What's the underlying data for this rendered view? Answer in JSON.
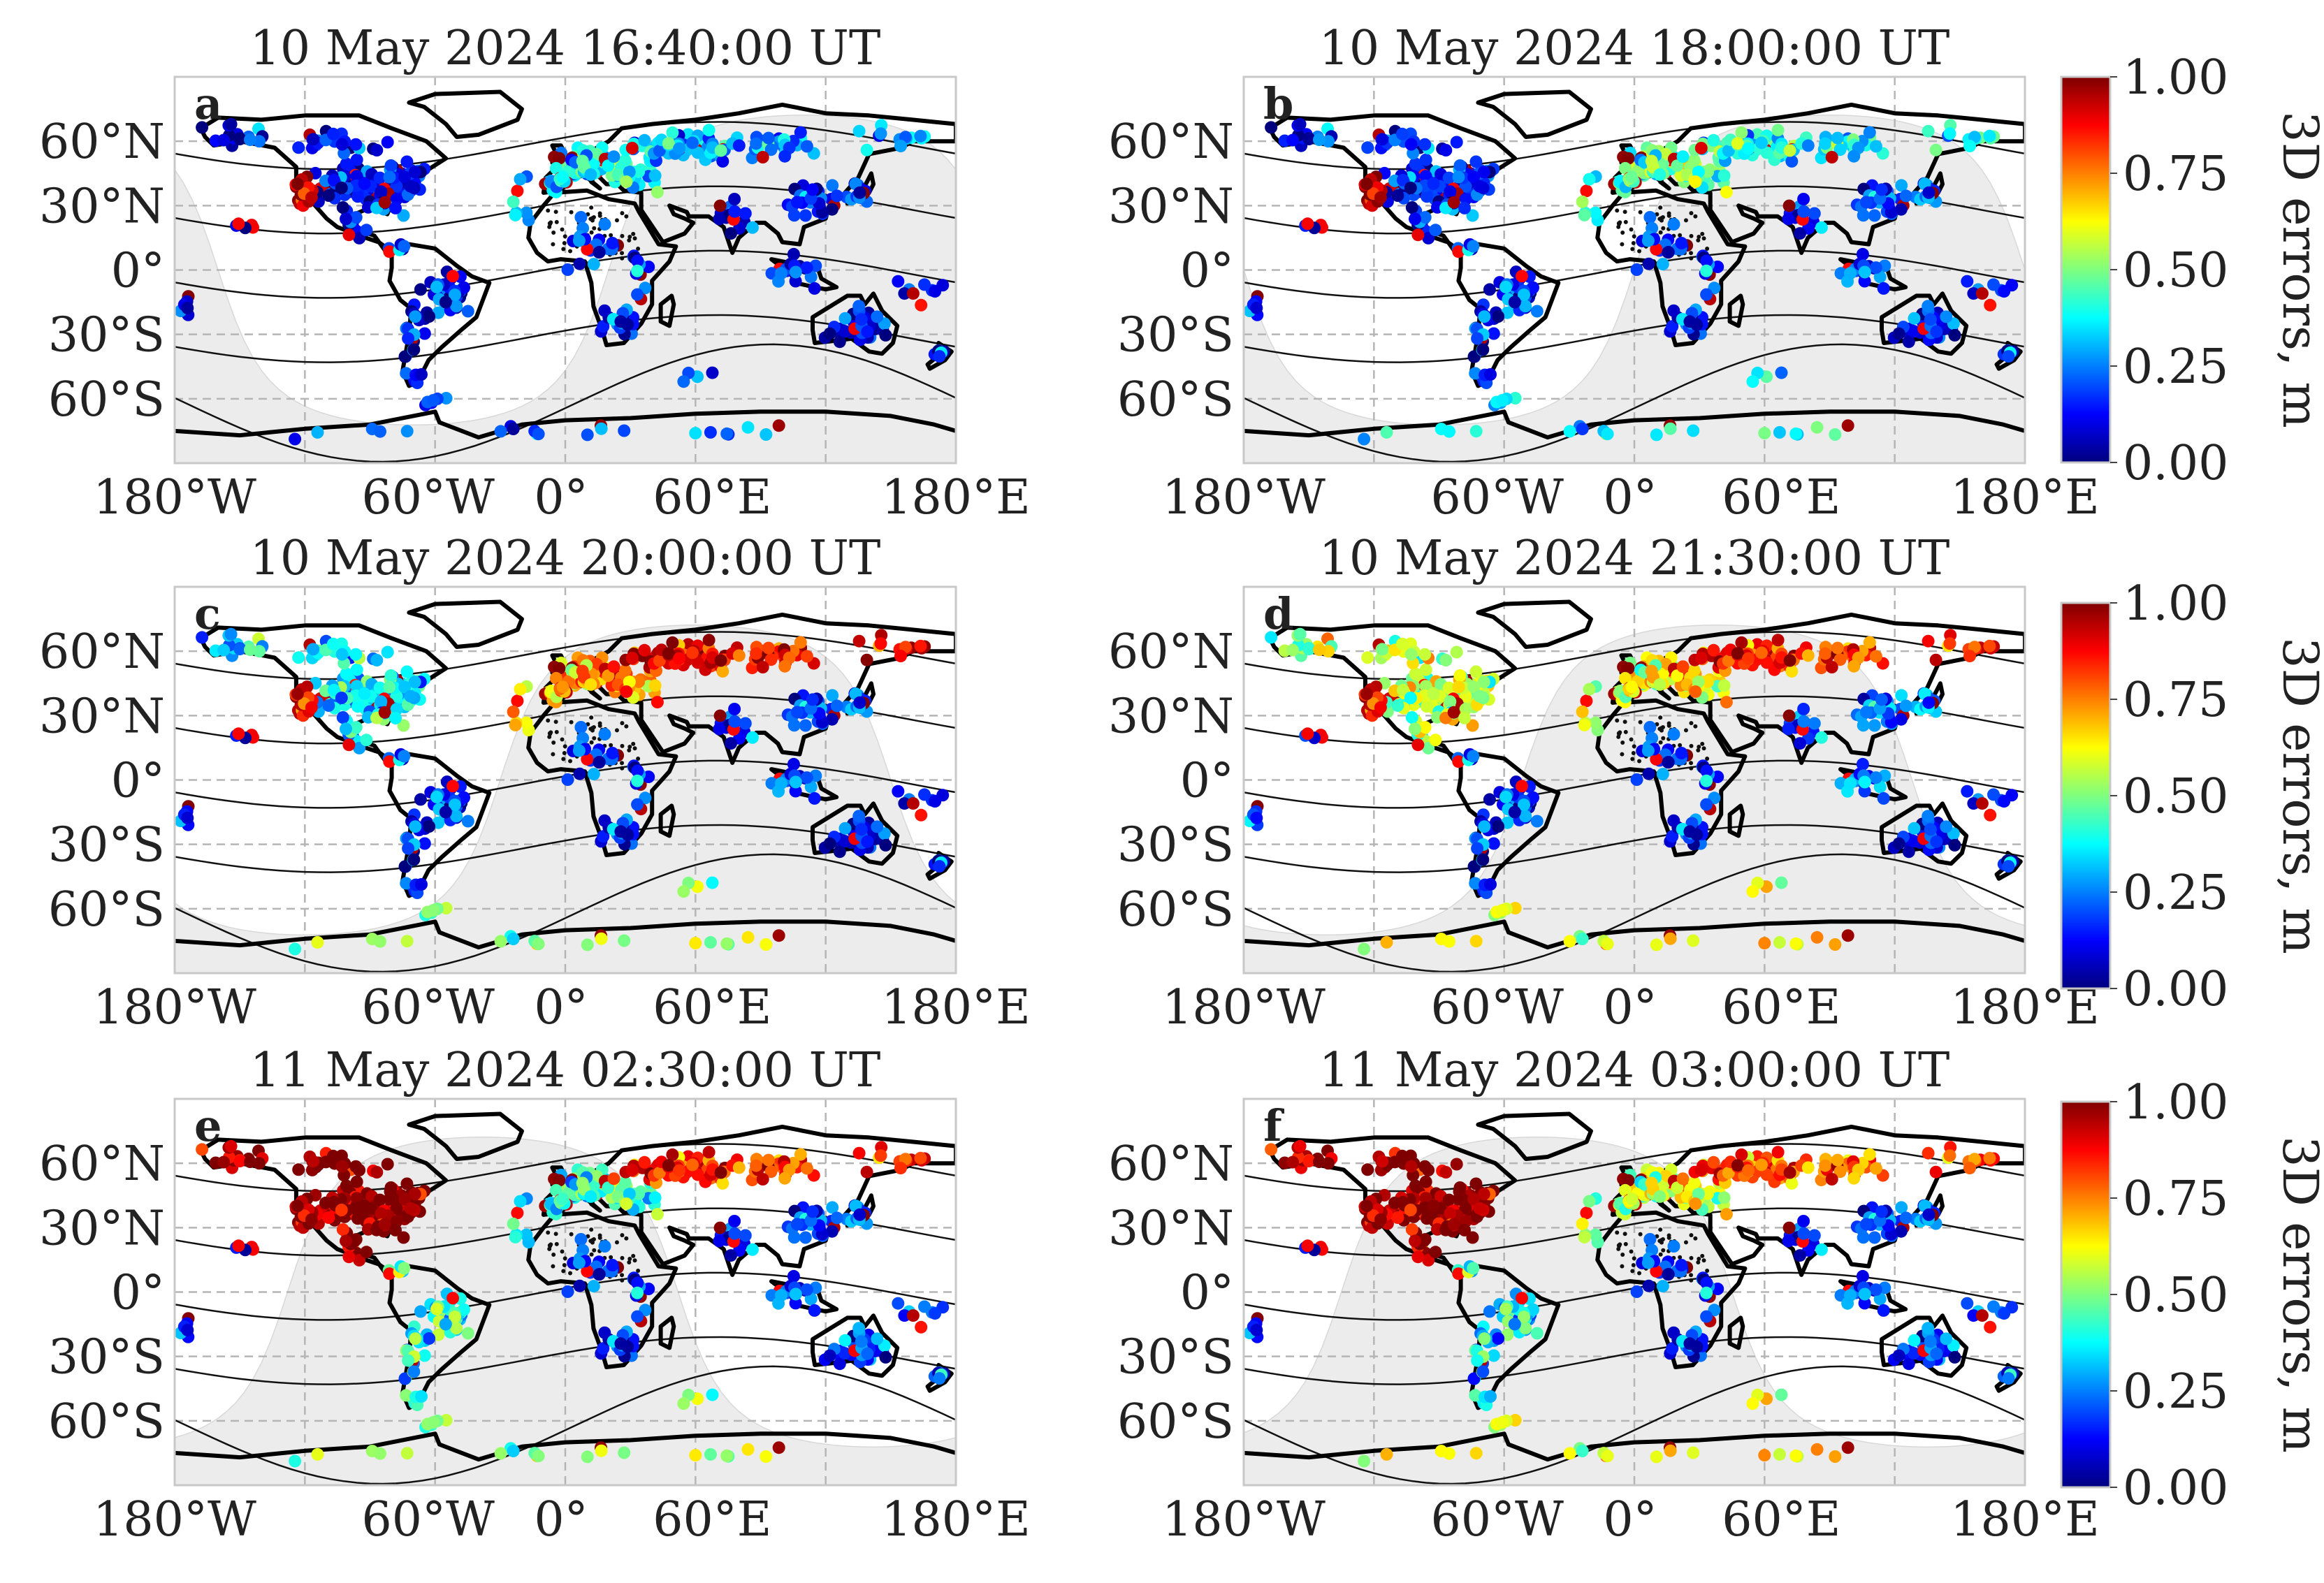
{
  "figure": {
    "x_tick_labels": [
      "180°W",
      "60°W",
      "0°",
      "60°E",
      "180°E"
    ],
    "y_tick_labels": [
      "60°N",
      "30°N",
      "0°",
      "30°S",
      "60°S"
    ],
    "panels": [
      {
        "letter": "a",
        "title": "10 May 2024 16:40:00 UT"
      },
      {
        "letter": "b",
        "title": "10 May 2024 18:00:00 UT"
      },
      {
        "letter": "c",
        "title": "10 May 2024 20:00:00 UT"
      },
      {
        "letter": "d",
        "title": "10 May 2024 21:30:00 UT"
      },
      {
        "letter": "e",
        "title": "11 May 2024 02:30:00 UT"
      },
      {
        "letter": "f",
        "title": "11 May 2024 03:00:00 UT"
      }
    ],
    "colorbar": {
      "label": "3D errors, m",
      "ticks": [
        "1.00",
        "0.75",
        "0.50",
        "0.25",
        "0.00"
      ],
      "min": 0.0,
      "max": 1.0,
      "colors": [
        "#00007f",
        "#0000ff",
        "#007fff",
        "#00ffff",
        "#7fff7f",
        "#ffff00",
        "#ff7f00",
        "#ff0000",
        "#7f0000"
      ]
    }
  },
  "chart_data": {
    "type": "scatter",
    "subtype": "geographic map of GNSS station 3D positioning errors",
    "units": "m",
    "color_scale": {
      "name": "jet",
      "range": [
        0.0,
        1.0
      ]
    },
    "lon_range": [
      -180,
      180
    ],
    "lat_range": [
      -90,
      90
    ],
    "lon_ticks": [
      -180,
      -60,
      0,
      60,
      180
    ],
    "lat_ticks": [
      60,
      30,
      0,
      -30,
      -60
    ],
    "panels": [
      {
        "letter": "a",
        "time": "10 May 2024 16:40:00 UT",
        "regions": [
          {
            "name": "North America",
            "level": 0.12
          },
          {
            "name": "US West",
            "level": 0.95
          },
          {
            "name": "South America",
            "level": 0.12
          },
          {
            "name": "Europe",
            "level": 0.35
          },
          {
            "name": "Russia",
            "level": 0.3
          },
          {
            "name": "Asia",
            "level": 0.15
          },
          {
            "name": "Africa",
            "level": 0.15
          },
          {
            "name": "Australia",
            "level": 0.12
          },
          {
            "name": "Antarctica",
            "level": 0.2
          }
        ]
      },
      {
        "letter": "b",
        "time": "10 May 2024 18:00:00 UT",
        "regions": [
          {
            "name": "North America",
            "level": 0.15
          },
          {
            "name": "US West",
            "level": 0.98
          },
          {
            "name": "South America",
            "level": 0.15
          },
          {
            "name": "Europe",
            "level": 0.45
          },
          {
            "name": "Russia",
            "level": 0.4
          },
          {
            "name": "Asia",
            "level": 0.2
          },
          {
            "name": "Africa",
            "level": 0.15
          },
          {
            "name": "Australia",
            "level": 0.15
          },
          {
            "name": "Antarctica",
            "level": 0.35
          }
        ]
      },
      {
        "letter": "c",
        "time": "10 May 2024 20:00:00 UT",
        "regions": [
          {
            "name": "North America",
            "level": 0.35
          },
          {
            "name": "US West",
            "level": 0.9
          },
          {
            "name": "South America",
            "level": 0.15
          },
          {
            "name": "Europe",
            "level": 0.7
          },
          {
            "name": "Russia",
            "level": 0.9
          },
          {
            "name": "Asia",
            "level": 0.2
          },
          {
            "name": "Africa",
            "level": 0.15
          },
          {
            "name": "Australia",
            "level": 0.12
          },
          {
            "name": "Antarctica",
            "level": 0.5
          }
        ]
      },
      {
        "letter": "d",
        "time": "10 May 2024 21:30:00 UT",
        "regions": [
          {
            "name": "North America",
            "level": 0.55
          },
          {
            "name": "US West",
            "level": 0.9
          },
          {
            "name": "South America",
            "level": 0.15
          },
          {
            "name": "Europe",
            "level": 0.6
          },
          {
            "name": "Russia",
            "level": 0.85
          },
          {
            "name": "Asia",
            "level": 0.25
          },
          {
            "name": "Africa",
            "level": 0.15
          },
          {
            "name": "Australia",
            "level": 0.15
          },
          {
            "name": "Antarctica",
            "level": 0.6
          }
        ]
      },
      {
        "letter": "e",
        "time": "11 May 2024 02:30:00 UT",
        "regions": [
          {
            "name": "North America",
            "level": 1.0
          },
          {
            "name": "US West",
            "level": 1.0
          },
          {
            "name": "South America",
            "level": 0.4
          },
          {
            "name": "Europe",
            "level": 0.4
          },
          {
            "name": "Russia",
            "level": 0.85
          },
          {
            "name": "Asia",
            "level": 0.2
          },
          {
            "name": "Africa",
            "level": 0.15
          },
          {
            "name": "Australia",
            "level": 0.2
          },
          {
            "name": "Antarctica",
            "level": 0.5
          }
        ]
      },
      {
        "letter": "f",
        "time": "11 May 2024 03:00:00 UT",
        "regions": [
          {
            "name": "North America",
            "level": 0.98
          },
          {
            "name": "US West",
            "level": 1.0
          },
          {
            "name": "South America",
            "level": 0.35
          },
          {
            "name": "Europe",
            "level": 0.55
          },
          {
            "name": "Russia",
            "level": 0.8
          },
          {
            "name": "Asia",
            "level": 0.2
          },
          {
            "name": "Africa",
            "level": 0.15
          },
          {
            "name": "Australia",
            "level": 0.2
          },
          {
            "name": "Antarctica",
            "level": 0.6
          }
        ]
      }
    ]
  }
}
